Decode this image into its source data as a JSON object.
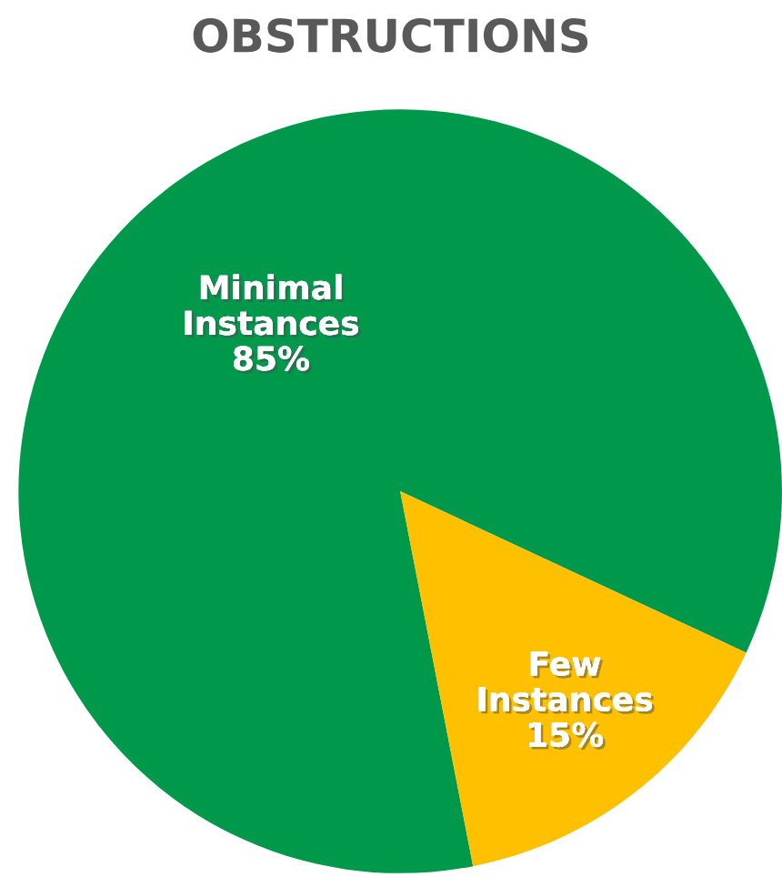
{
  "chart_data": {
    "type": "pie",
    "title": "OBSTRUCTIONS",
    "categories": [
      "Minimal Instances",
      "Few Instances"
    ],
    "values": [
      85,
      15
    ],
    "colors": [
      "#00994c",
      "#ffc000"
    ],
    "value_labels": [
      "85%",
      "15%"
    ],
    "legend": false
  }
}
